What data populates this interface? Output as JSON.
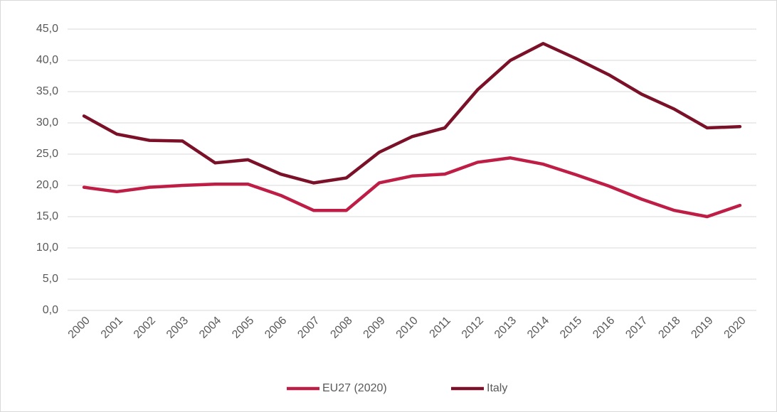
{
  "chart_data": {
    "type": "line",
    "categories": [
      "2000",
      "2001",
      "2002",
      "2003",
      "2004",
      "2005",
      "2006",
      "2007",
      "2008",
      "2009",
      "2010",
      "2011",
      "2012",
      "2013",
      "2014",
      "2015",
      "2016",
      "2017",
      "2018",
      "2019",
      "2020"
    ],
    "series": [
      {
        "name": "EU27 (2020)",
        "color": "#be1e46",
        "values": [
          19.7,
          19.0,
          19.7,
          20.0,
          20.2,
          20.2,
          18.4,
          16.0,
          16.0,
          20.4,
          21.5,
          21.8,
          23.7,
          24.4,
          23.4,
          21.7,
          19.9,
          17.8,
          16.0,
          15.0,
          16.8
        ]
      },
      {
        "name": "Italy",
        "color": "#7b1128",
        "values": [
          31.1,
          28.2,
          27.2,
          27.1,
          23.6,
          24.1,
          21.8,
          20.4,
          21.2,
          25.3,
          27.8,
          29.2,
          35.3,
          40.0,
          42.7,
          40.3,
          37.7,
          34.6,
          32.2,
          29.2,
          29.4
        ]
      }
    ],
    "ylim": [
      0,
      45
    ],
    "yticks": [
      {
        "value": 0,
        "label": "0,0"
      },
      {
        "value": 5,
        "label": "5,0"
      },
      {
        "value": 10,
        "label": "10,0"
      },
      {
        "value": 15,
        "label": "15,0"
      },
      {
        "value": 20,
        "label": "20,0"
      },
      {
        "value": 25,
        "label": "25,0"
      },
      {
        "value": 30,
        "label": "30,0"
      },
      {
        "value": 35,
        "label": "35,0"
      },
      {
        "value": 40,
        "label": "40,0"
      },
      {
        "value": 45,
        "label": "45,0"
      }
    ],
    "grid": true,
    "legend": "bottom"
  }
}
